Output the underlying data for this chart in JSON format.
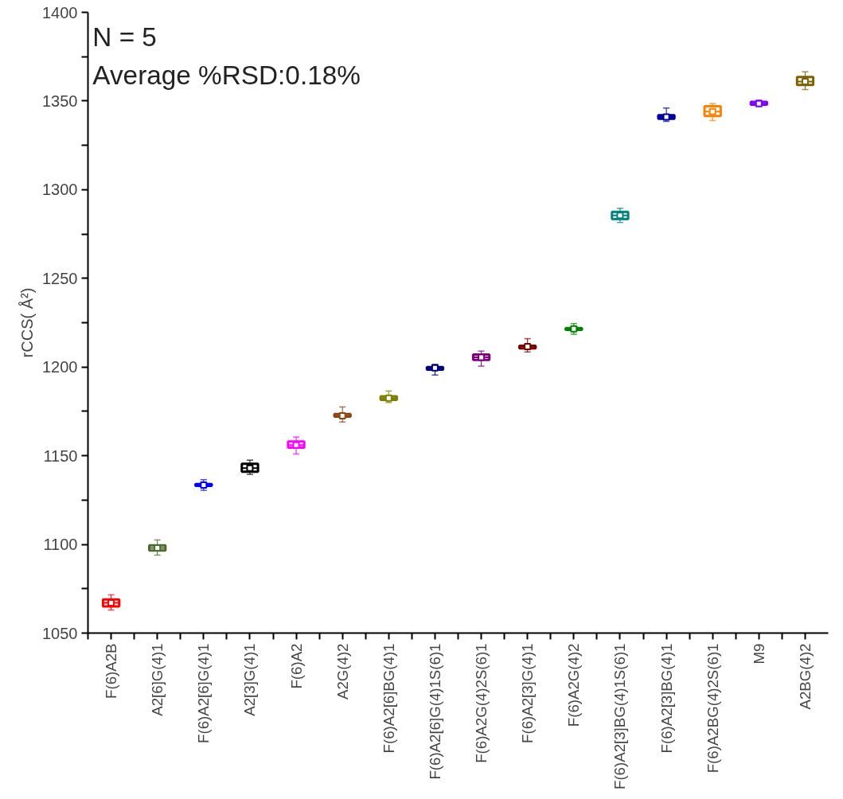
{
  "chart_data": {
    "type": "box",
    "ylabel": "rCCS( Å²)",
    "annotations": [
      "N = 5",
      "Average %RSD:0.18%"
    ],
    "categories": [
      "F(6)A2B",
      "A2[6]G(4)1",
      "F(6)A2[6]G(4)1",
      "A2[3]G(4)1",
      "F(6)A2",
      "A2G(4)2",
      "F(6)A2[6]BG(4)1",
      "F(6)A2[6]G(4)1S(6)1",
      "F(6)A2G(4)2S(6)1",
      "F(6)A2[3]G(4)1",
      "F(6)A2G(4)2",
      "F(6)A2[3]BG(4)1S(6)1",
      "F(6)A2[3]BG(4)1",
      "F(6)A2BG(4)2S(6)1",
      "M9",
      "A2BG(4)2"
    ],
    "colors": [
      "#ff0000",
      "#4b6b2f",
      "#0000ff",
      "#000000",
      "#ff00ff",
      "#8b4513",
      "#808000",
      "#000080",
      "#800080",
      "#800000",
      "#008000",
      "#008080",
      "#0000a0",
      "#ff8000",
      "#8000ff",
      "#806000"
    ],
    "boxes": [
      {
        "low": 1063,
        "q1": 1065,
        "median": 1067,
        "q3": 1069,
        "high": 1071.5,
        "mean": 1067
      },
      {
        "low": 1094,
        "q1": 1096.5,
        "median": 1098,
        "q3": 1099.5,
        "high": 1102.5,
        "mean": 1098
      },
      {
        "low": 1130.5,
        "q1": 1133,
        "median": 1133.5,
        "q3": 1134,
        "high": 1136.5,
        "mean": 1133.5
      },
      {
        "low": 1139.5,
        "q1": 1141,
        "median": 1143,
        "q3": 1145.5,
        "high": 1147.5,
        "mean": 1143
      },
      {
        "low": 1151,
        "q1": 1154.5,
        "median": 1156,
        "q3": 1158,
        "high": 1160.5,
        "mean": 1156
      },
      {
        "low": 1169,
        "q1": 1172,
        "median": 1172.5,
        "q3": 1173.5,
        "high": 1177.5,
        "mean": 1172.5
      },
      {
        "low": 1180,
        "q1": 1181.5,
        "median": 1182.5,
        "q3": 1183.5,
        "high": 1186.5,
        "mean": 1182.5
      },
      {
        "low": 1195.5,
        "q1": 1198.5,
        "median": 1199.5,
        "q3": 1200,
        "high": 1201.5,
        "mean": 1199.5
      },
      {
        "low": 1200.5,
        "q1": 1204,
        "median": 1205.5,
        "q3": 1207,
        "high": 1209,
        "mean": 1205.5
      },
      {
        "low": 1208.5,
        "q1": 1210.5,
        "median": 1211.5,
        "q3": 1212,
        "high": 1216,
        "mean": 1211.5
      },
      {
        "low": 1218.5,
        "q1": 1221,
        "median": 1221.5,
        "q3": 1222,
        "high": 1224.5,
        "mean": 1221.5
      },
      {
        "low": 1281.5,
        "q1": 1283.5,
        "median": 1285.5,
        "q3": 1287.5,
        "high": 1289.5,
        "mean": 1285.5
      },
      {
        "low": 1338.5,
        "q1": 1340,
        "median": 1341,
        "q3": 1342,
        "high": 1346,
        "mean": 1341
      },
      {
        "low": 1339,
        "q1": 1341.5,
        "median": 1344,
        "q3": 1347,
        "high": 1348.5,
        "mean": 1344
      },
      {
        "low": 1347,
        "q1": 1348,
        "median": 1348.5,
        "q3": 1349.5,
        "high": 1350.5,
        "mean": 1348.5
      },
      {
        "low": 1356.5,
        "q1": 1359,
        "median": 1361,
        "q3": 1363.5,
        "high": 1366.5,
        "mean": 1361
      }
    ],
    "ylim": [
      1050,
      1400
    ],
    "yticks": [
      1050,
      {
        "value": 1075,
        "label": null
      },
      1100,
      {
        "value": 1125,
        "label": null
      },
      1150,
      {
        "value": 1175,
        "label": null
      },
      1200,
      {
        "value": 1225,
        "label": null
      },
      1250,
      {
        "value": 1275,
        "label": null
      },
      1300,
      {
        "value": 1325,
        "label": null
      },
      1350,
      {
        "value": 1375,
        "label": null
      },
      1400
    ]
  }
}
